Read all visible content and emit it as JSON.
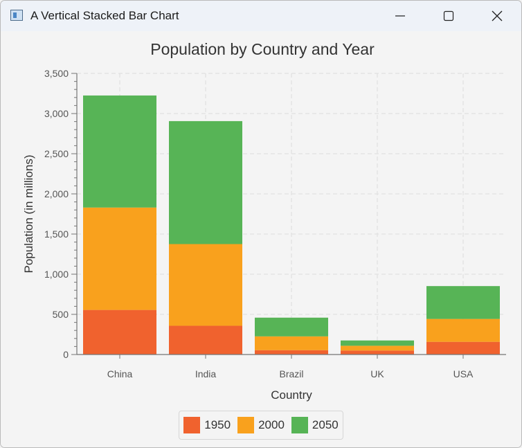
{
  "window": {
    "title": "A Vertical Stacked Bar Chart",
    "app_icon": "java-app-icon",
    "controls": [
      "minimize-icon",
      "maximize-icon",
      "close-icon"
    ]
  },
  "colors": {
    "1950": "#f0622e",
    "2000": "#f9a11d",
    "2050": "#57b456",
    "grid": "#e1e1e1",
    "axis": "#757575",
    "text": "#333333"
  },
  "chart_data": {
    "type": "bar",
    "stacked": true,
    "title": "Population by Country and Year",
    "xlabel": "Country",
    "ylabel": "Population (in millions)",
    "categories": [
      "China",
      "India",
      "Brazil",
      "UK",
      "USA"
    ],
    "series": [
      {
        "name": "1950",
        "values": [
          555,
          358,
          54,
          50,
          158
        ]
      },
      {
        "name": "2000",
        "values": [
          1275,
          1017,
          172,
          59,
          285
        ]
      },
      {
        "name": "2050",
        "values": [
          1395,
          1531,
          233,
          66,
          409
        ]
      }
    ],
    "ylim": [
      0,
      3500
    ],
    "yticks": [
      0,
      500,
      1000,
      1500,
      2000,
      2500,
      3000,
      3500
    ],
    "ytick_labels": [
      "0",
      "500",
      "1,000",
      "1,500",
      "2,000",
      "2,500",
      "3,000",
      "3,500"
    ],
    "grid": true,
    "legend_position": "bottom"
  }
}
